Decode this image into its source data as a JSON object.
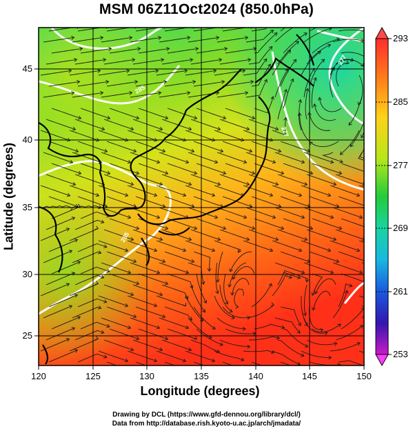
{
  "title": "MSM 06Z11Oct2024 (850.0hPa)",
  "x_axis": {
    "label": "Longitude (degrees)",
    "ticks": [
      "120",
      "125",
      "130",
      "135",
      "140",
      "145",
      "150"
    ],
    "range": [
      120,
      150
    ]
  },
  "y_axis": {
    "label": "Latitude  (degrees)",
    "ticks": [
      "25",
      "30",
      "35",
      "40",
      "45"
    ],
    "range": [
      22.4,
      47.6
    ]
  },
  "colorbar": {
    "labels": [
      "293",
      "285",
      "277",
      "269",
      "261",
      "253"
    ],
    "range": [
      253,
      293
    ],
    "colors": [
      "#ff2d2d",
      "#ff7a1a",
      "#ffc21a",
      "#c8e81a",
      "#2ecc3c",
      "#1ad49a",
      "#18b8d8",
      "#1a6be0",
      "#2a1ab8",
      "#a01ab8",
      "#ff3dff"
    ]
  },
  "credits": [
    "Drawing by DCL (https://www.gfd-dennou.org/library/dcl/)",
    "Data from http://database.rish.kyoto-u.ac.jp/arch/jmadata/"
  ],
  "contour_labels": [
    "285",
    "285",
    "277",
    "277"
  ]
}
